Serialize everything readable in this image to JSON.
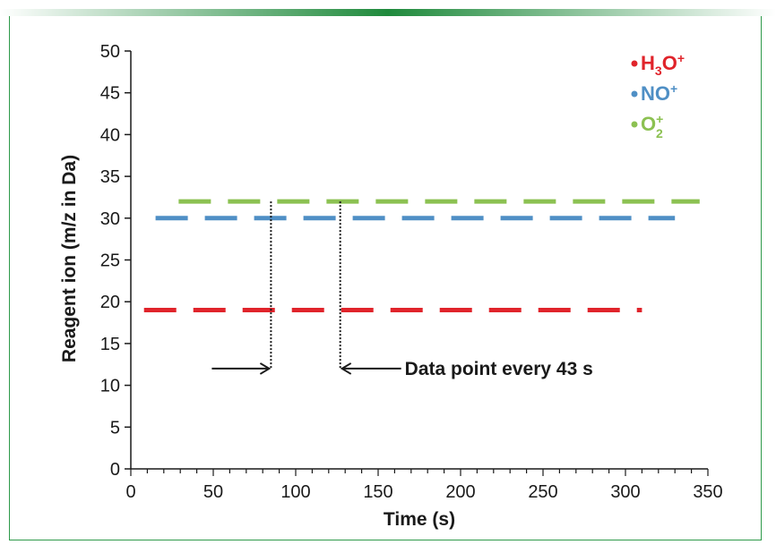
{
  "chart_data": {
    "type": "line",
    "title": "",
    "xlabel": "Time (s)",
    "ylabel": "Reagent ion (m/z in Da)",
    "xlim": [
      0,
      350
    ],
    "ylim": [
      0,
      50
    ],
    "xticks": [
      0,
      50,
      100,
      150,
      200,
      250,
      300,
      350
    ],
    "yticks": [
      0,
      5,
      10,
      15,
      20,
      25,
      30,
      35,
      40,
      45,
      50
    ],
    "grid": false,
    "legend_position": "top-right",
    "series": [
      {
        "key": "h3o",
        "label": {
          "base": "H",
          "sub": "3",
          "mid": "O",
          "sup": "+",
          "sub2": ""
        },
        "color": "#e0242b",
        "x": [
          8,
          310
        ],
        "y": [
          19,
          19
        ],
        "style": "dashed"
      },
      {
        "key": "no",
        "label": {
          "base": "NO",
          "sub": "",
          "mid": "",
          "sup": "+",
          "sub2": ""
        },
        "color": "#4f8fc5",
        "x": [
          15,
          330
        ],
        "y": [
          30,
          30
        ],
        "style": "dashed"
      },
      {
        "key": "o2",
        "label": {
          "base": "O",
          "sub": "",
          "mid": "",
          "sup": "+",
          "sub2": "2"
        },
        "color": "#8cc152",
        "x": [
          29,
          345
        ],
        "y": [
          32,
          32
        ],
        "style": "dashed"
      }
    ],
    "annotations": [
      {
        "text": "Data point every 43 s",
        "markers_x": [
          85,
          127
        ],
        "marker_top_y": 32,
        "arrow_y": 12
      }
    ]
  },
  "colors": {
    "frame": "#2e9a4a",
    "topbar": "#1f8a3c"
  }
}
